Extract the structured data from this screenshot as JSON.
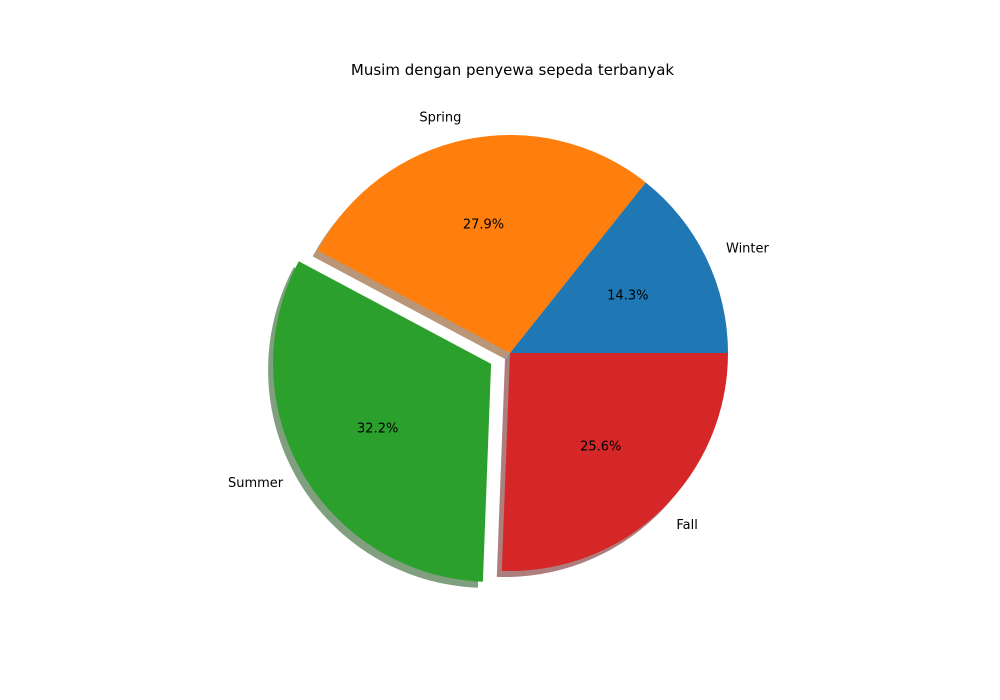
{
  "chart_data": {
    "type": "pie",
    "title": "Musim dengan penyewa sepeda terbanyak",
    "categories": [
      "Winter",
      "Spring",
      "Summer",
      "Fall"
    ],
    "values": [
      14.3,
      27.9,
      32.2,
      25.6
    ],
    "value_labels": [
      "14.3%",
      "27.9%",
      "32.2%",
      "25.6%"
    ],
    "colors": [
      "#1f77b4",
      "#ff7f0e",
      "#2ca02c",
      "#d62728"
    ],
    "exploded": [
      "Summer"
    ],
    "shadow": true,
    "start_angle_degrees": 0,
    "direction": "counterclockwise",
    "legend": "none"
  }
}
